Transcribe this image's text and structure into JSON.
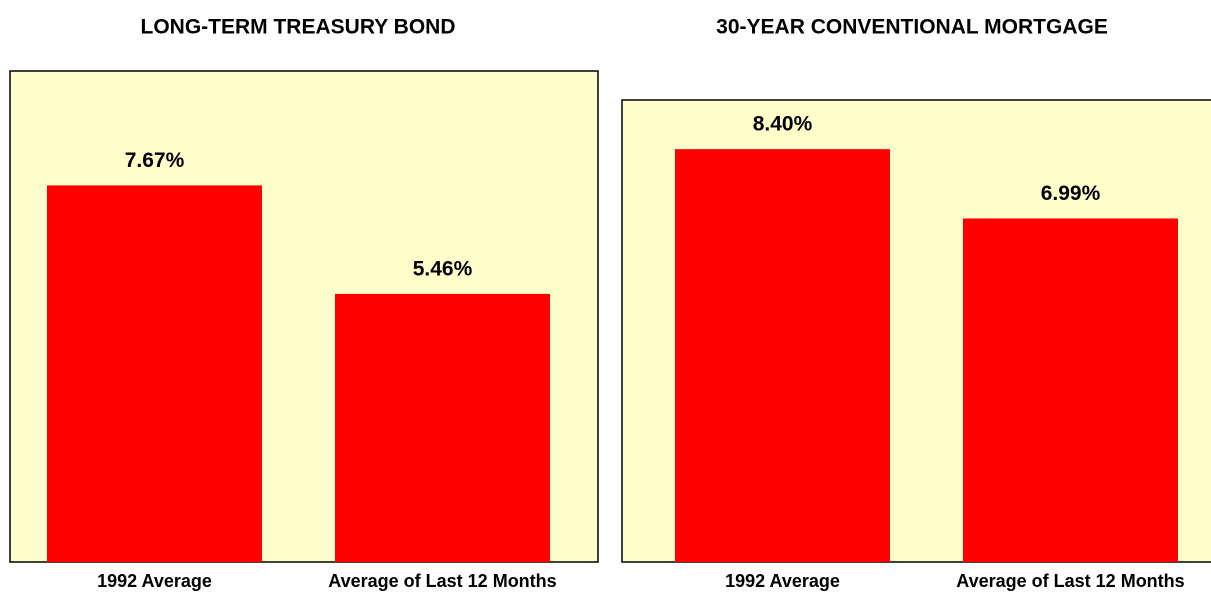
{
  "chart_data": [
    {
      "type": "bar",
      "title": "LONG-TERM TREASURY BOND",
      "categories": [
        "1992 Average",
        "Average of Last 12 Months"
      ],
      "values": [
        7.67,
        5.46
      ],
      "value_labels": [
        "7.67%",
        "5.46%"
      ],
      "color": "#ff0000",
      "background": "#ffffcc",
      "ylim": [
        0,
        10
      ]
    },
    {
      "type": "bar",
      "title": "30-YEAR CONVENTIONAL MORTGAGE",
      "categories": [
        "1992 Average",
        "Average of Last 12 Months"
      ],
      "values": [
        8.4,
        6.99
      ],
      "value_labels": [
        "8.40%",
        "6.99%"
      ],
      "color": "#ff0000",
      "background": "#ffffcc",
      "ylim": [
        0,
        9.4
      ]
    }
  ]
}
